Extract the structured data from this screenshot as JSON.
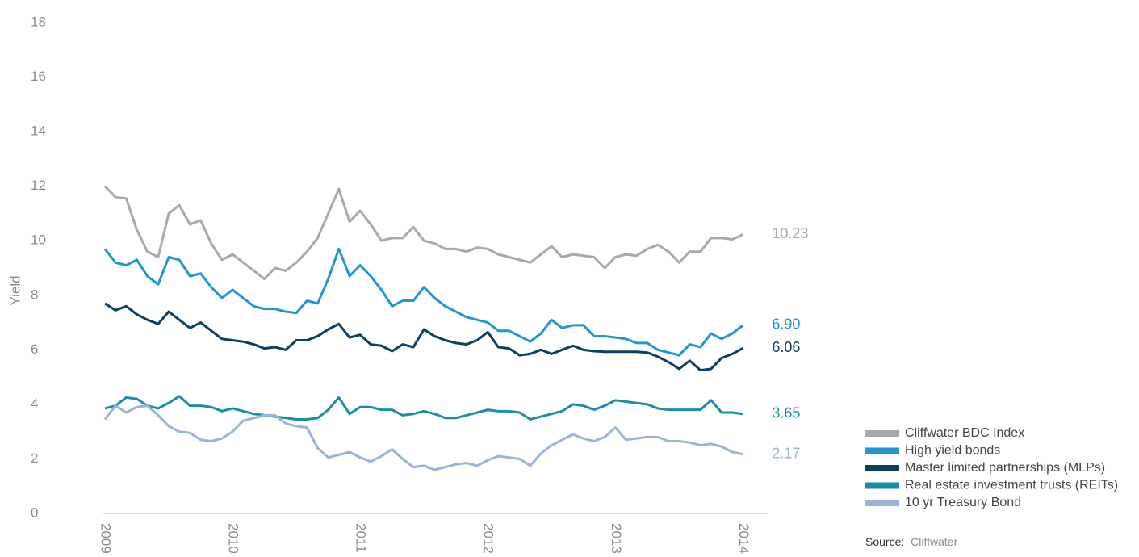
{
  "chart_data": {
    "type": "line",
    "y_label": "Yield",
    "x": [
      2009,
      2009.083,
      2009.167,
      2009.25,
      2009.333,
      2009.417,
      2009.5,
      2009.583,
      2009.667,
      2009.75,
      2009.833,
      2009.917,
      2010,
      2010.083,
      2010.167,
      2010.25,
      2010.333,
      2010.417,
      2010.5,
      2010.583,
      2010.667,
      2010.75,
      2010.833,
      2010.917,
      2011,
      2011.083,
      2011.167,
      2011.25,
      2011.333,
      2011.417,
      2011.5,
      2011.583,
      2011.667,
      2011.75,
      2011.833,
      2011.917,
      2012,
      2012.083,
      2012.167,
      2012.25,
      2012.333,
      2012.417,
      2012.5,
      2012.583,
      2012.667,
      2012.75,
      2012.833,
      2012.917,
      2013,
      2013.083,
      2013.167,
      2013.25,
      2013.333,
      2013.417,
      2013.5,
      2013.583,
      2013.667,
      2013.75,
      2013.833,
      2013.917,
      2014
    ],
    "xlim": [
      2009,
      2014.2
    ],
    "xticks": [
      2009,
      2010,
      2011,
      2012,
      2013,
      2014
    ],
    "ylim": [
      0,
      18
    ],
    "yticks": [
      0,
      2,
      4,
      6,
      8,
      10,
      12,
      14,
      16,
      18
    ],
    "grid": false,
    "legend": "bottom-right",
    "series": [
      {
        "name": "Cliffwater BDC Index",
        "color": "#a9a9a9",
        "values": [
          12.0,
          11.6,
          11.55,
          10.4,
          9.6,
          9.4,
          11.0,
          11.3,
          10.6,
          10.75,
          9.9,
          9.3,
          9.5,
          9.2,
          8.9,
          8.6,
          9.0,
          8.9,
          9.2,
          9.6,
          10.1,
          11.0,
          11.9,
          10.7,
          11.1,
          10.6,
          10.0,
          10.1,
          10.1,
          10.5,
          10.0,
          9.9,
          9.7,
          9.7,
          9.6,
          9.75,
          9.7,
          9.5,
          9.4,
          9.3,
          9.2,
          9.5,
          9.8,
          9.4,
          9.5,
          9.45,
          9.4,
          9.0,
          9.4,
          9.5,
          9.45,
          9.7,
          9.85,
          9.6,
          9.2,
          9.6,
          9.6,
          10.1,
          10.1,
          10.05,
          10.23
        ],
        "value_labels": [
          null,
          null,
          null,
          null,
          null,
          null,
          null,
          null,
          null,
          null,
          null,
          null,
          null,
          null,
          null,
          null,
          null,
          null,
          null,
          null,
          null,
          null,
          null,
          null,
          null,
          null,
          null,
          null,
          null,
          null,
          null,
          null,
          null,
          null,
          null,
          null,
          null,
          null,
          null,
          null,
          null,
          null,
          null,
          null,
          null,
          null,
          null,
          null,
          null,
          null,
          null,
          null,
          null,
          null,
          null,
          null,
          null,
          null,
          null,
          null,
          "10.23"
        ]
      },
      {
        "name": "High yield bonds",
        "color": "#2196d3",
        "values": [
          9.7,
          9.2,
          9.1,
          9.3,
          8.7,
          8.4,
          9.4,
          9.3,
          8.7,
          8.8,
          8.3,
          7.9,
          8.2,
          7.9,
          7.6,
          7.5,
          7.5,
          7.4,
          7.35,
          7.8,
          7.7,
          8.6,
          9.7,
          8.7,
          9.1,
          8.7,
          8.2,
          7.6,
          7.8,
          7.8,
          8.3,
          7.9,
          7.6,
          7.4,
          7.2,
          7.1,
          7.0,
          6.7,
          6.7,
          6.5,
          6.3,
          6.6,
          7.1,
          6.8,
          6.9,
          6.9,
          6.5,
          6.5,
          6.45,
          6.4,
          6.25,
          6.25,
          6.0,
          5.9,
          5.8,
          6.2,
          6.1,
          6.6,
          6.4,
          6.6,
          6.9
        ],
        "value_labels": [
          null,
          null,
          null,
          null,
          null,
          null,
          null,
          null,
          null,
          null,
          null,
          null,
          null,
          null,
          null,
          null,
          null,
          null,
          null,
          null,
          null,
          null,
          null,
          null,
          null,
          null,
          null,
          null,
          null,
          null,
          null,
          null,
          null,
          null,
          null,
          null,
          null,
          null,
          null,
          null,
          null,
          null,
          null,
          null,
          null,
          null,
          null,
          null,
          null,
          null,
          null,
          null,
          null,
          null,
          null,
          null,
          null,
          null,
          null,
          null,
          "6.90"
        ]
      },
      {
        "name": "Master limited partnerships (MLPs)",
        "color": "#0e3f63",
        "values": [
          7.7,
          7.45,
          7.6,
          7.3,
          7.1,
          6.95,
          7.4,
          7.1,
          6.8,
          7.0,
          6.7,
          6.4,
          6.35,
          6.3,
          6.2,
          6.05,
          6.1,
          6.0,
          6.35,
          6.35,
          6.5,
          6.75,
          6.95,
          6.45,
          6.55,
          6.2,
          6.15,
          5.95,
          6.2,
          6.1,
          6.75,
          6.5,
          6.35,
          6.25,
          6.2,
          6.35,
          6.65,
          6.1,
          6.05,
          5.8,
          5.85,
          6.0,
          5.85,
          6.0,
          6.15,
          6.0,
          5.95,
          5.93,
          5.93,
          5.93,
          5.93,
          5.9,
          5.75,
          5.55,
          5.3,
          5.6,
          5.25,
          5.3,
          5.7,
          5.85,
          6.06
        ],
        "value_labels": [
          null,
          null,
          null,
          null,
          null,
          null,
          null,
          null,
          null,
          null,
          null,
          null,
          null,
          null,
          null,
          null,
          null,
          null,
          null,
          null,
          null,
          null,
          null,
          null,
          null,
          null,
          null,
          null,
          null,
          null,
          null,
          null,
          null,
          null,
          null,
          null,
          null,
          null,
          null,
          null,
          null,
          null,
          null,
          null,
          null,
          null,
          null,
          null,
          null,
          null,
          null,
          null,
          null,
          null,
          null,
          null,
          null,
          null,
          null,
          null,
          "6.06"
        ]
      },
      {
        "name": "Real estate investment trusts (REITs)",
        "color": "#1b8ea6",
        "values": [
          3.85,
          3.95,
          4.25,
          4.2,
          3.95,
          3.85,
          4.05,
          4.3,
          3.95,
          3.95,
          3.9,
          3.75,
          3.85,
          3.75,
          3.65,
          3.6,
          3.55,
          3.5,
          3.45,
          3.45,
          3.5,
          3.8,
          4.25,
          3.65,
          3.9,
          3.9,
          3.8,
          3.8,
          3.6,
          3.65,
          3.75,
          3.65,
          3.5,
          3.5,
          3.6,
          3.7,
          3.8,
          3.75,
          3.75,
          3.7,
          3.45,
          3.55,
          3.65,
          3.75,
          4.0,
          3.95,
          3.8,
          3.95,
          4.15,
          4.1,
          4.05,
          4.0,
          3.85,
          3.8,
          3.8,
          3.8,
          3.8,
          4.15,
          3.7,
          3.7,
          3.65
        ],
        "value_labels": [
          null,
          null,
          null,
          null,
          null,
          null,
          null,
          null,
          null,
          null,
          null,
          null,
          null,
          null,
          null,
          null,
          null,
          null,
          null,
          null,
          null,
          null,
          null,
          null,
          null,
          null,
          null,
          null,
          null,
          null,
          null,
          null,
          null,
          null,
          null,
          null,
          null,
          null,
          null,
          null,
          null,
          null,
          null,
          null,
          null,
          null,
          null,
          null,
          null,
          null,
          null,
          null,
          null,
          null,
          null,
          null,
          null,
          null,
          null,
          null,
          "3.65"
        ]
      },
      {
        "name": "10 yr Treasury Bond",
        "color": "#9bb3d8",
        "values": [
          3.45,
          3.95,
          3.7,
          3.9,
          3.95,
          3.6,
          3.2,
          3.0,
          2.95,
          2.7,
          2.65,
          2.75,
          3.0,
          3.4,
          3.5,
          3.6,
          3.6,
          3.3,
          3.2,
          3.15,
          2.4,
          2.05,
          2.15,
          2.25,
          2.05,
          1.9,
          2.1,
          2.35,
          2.0,
          1.7,
          1.75,
          1.6,
          1.7,
          1.8,
          1.85,
          1.75,
          1.95,
          2.1,
          2.05,
          2.0,
          1.75,
          2.2,
          2.5,
          2.7,
          2.9,
          2.75,
          2.65,
          2.8,
          3.15,
          2.7,
          2.75,
          2.8,
          2.8,
          2.65,
          2.65,
          2.6,
          2.5,
          2.55,
          2.45,
          2.25,
          2.17
        ],
        "value_labels": [
          null,
          null,
          null,
          null,
          null,
          null,
          null,
          null,
          null,
          null,
          null,
          null,
          null,
          null,
          null,
          null,
          null,
          null,
          null,
          null,
          null,
          null,
          null,
          null,
          null,
          null,
          null,
          null,
          null,
          null,
          null,
          null,
          null,
          null,
          null,
          null,
          null,
          null,
          null,
          null,
          null,
          null,
          null,
          null,
          null,
          null,
          null,
          null,
          null,
          null,
          null,
          null,
          null,
          null,
          null,
          null,
          null,
          null,
          null,
          null,
          "2.17"
        ]
      }
    ],
    "source_label": "Source:",
    "source": "Cliffwater"
  }
}
